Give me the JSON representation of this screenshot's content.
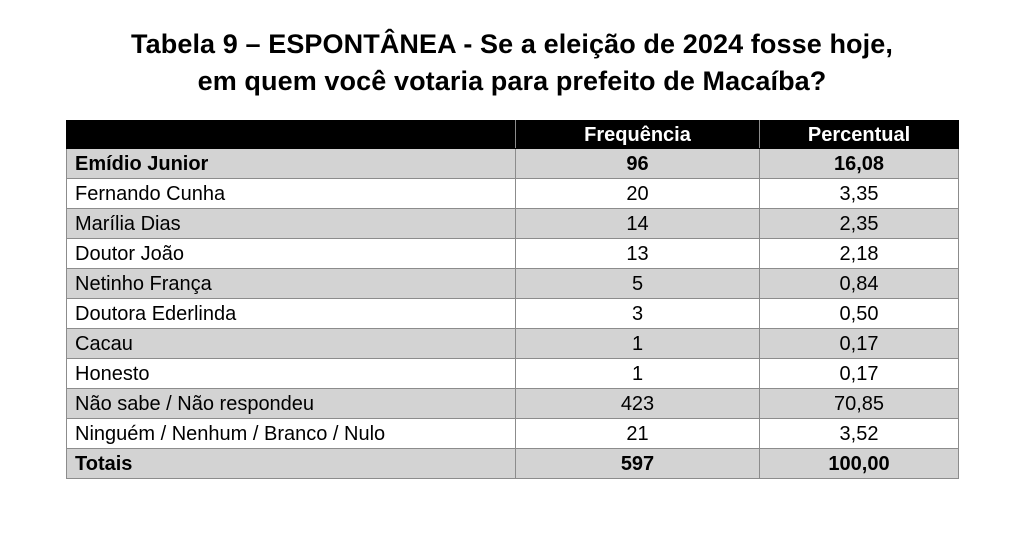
{
  "title": {
    "line1": "Tabela 9 – ESPONTÂNEA - Se a eleição de 2024 fosse hoje,",
    "line2": "em quem você votaria para prefeito de Macaíba?"
  },
  "table": {
    "headers": [
      "",
      "Frequência",
      "Percentual"
    ],
    "rows": [
      {
        "name": "Emídio Junior",
        "freq": "96",
        "pct": "16,08"
      },
      {
        "name": "Fernando Cunha",
        "freq": "20",
        "pct": "3,35"
      },
      {
        "name": "Marília Dias",
        "freq": "14",
        "pct": "2,35"
      },
      {
        "name": "Doutor João",
        "freq": "13",
        "pct": "2,18"
      },
      {
        "name": "Netinho França",
        "freq": "5",
        "pct": "0,84"
      },
      {
        "name": "Doutora Ederlinda",
        "freq": "3",
        "pct": "0,50"
      },
      {
        "name": "Cacau",
        "freq": "1",
        "pct": "0,17"
      },
      {
        "name": "Honesto",
        "freq": "1",
        "pct": "0,17"
      },
      {
        "name": "Não sabe / Não respondeu",
        "freq": "423",
        "pct": "70,85"
      },
      {
        "name": "Ninguém / Nenhum / Branco / Nulo",
        "freq": "21",
        "pct": "3,52"
      }
    ],
    "totals": {
      "name": "Totais",
      "freq": "597",
      "pct": "100,00"
    }
  },
  "colors": {
    "header_bg": "#000000",
    "header_text": "#ffffff",
    "shaded_row": "#d3d3d3",
    "plain_row": "#ffffff",
    "border": "#8c8c8c"
  }
}
